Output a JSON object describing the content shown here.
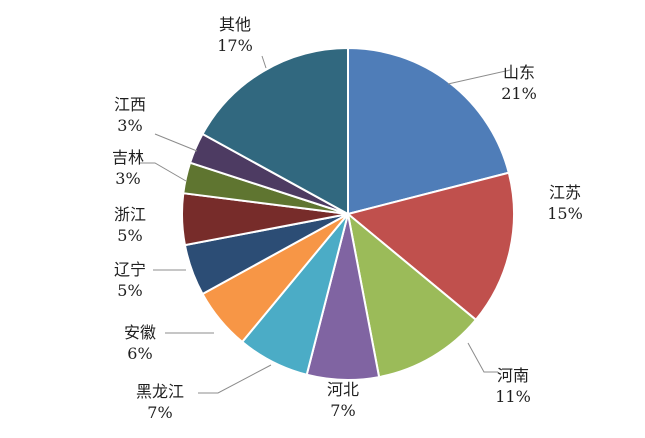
{
  "chart_data": {
    "type": "pie",
    "start_angle_deg": 0,
    "direction": "clockwise",
    "legend": "none",
    "slices": [
      {
        "label": "山东",
        "value": 21,
        "pct_label": "21%",
        "color": "#4f7db8"
      },
      {
        "label": "江苏",
        "value": 15,
        "pct_label": "15%",
        "color": "#c0504d"
      },
      {
        "label": "河南",
        "value": 11,
        "pct_label": "11%",
        "color": "#9bbb59"
      },
      {
        "label": "河北",
        "value": 7,
        "pct_label": "7%",
        "color": "#8064a2"
      },
      {
        "label": "黑龙江",
        "value": 7,
        "pct_label": "7%",
        "color": "#4bacc6"
      },
      {
        "label": "安徽",
        "value": 6,
        "pct_label": "6%",
        "color": "#f79646"
      },
      {
        "label": "辽宁",
        "value": 5,
        "pct_label": "5%",
        "color": "#2c4d75"
      },
      {
        "label": "浙江",
        "value": 5,
        "pct_label": "5%",
        "color": "#772c2a"
      },
      {
        "label": "吉林",
        "value": 3,
        "pct_label": "3%",
        "color": "#5f7530"
      },
      {
        "label": "江西",
        "value": 3,
        "pct_label": "3%",
        "color": "#4d3b62"
      },
      {
        "label": "其他",
        "value": 17,
        "pct_label": "17%",
        "color": "#31687f"
      }
    ]
  }
}
